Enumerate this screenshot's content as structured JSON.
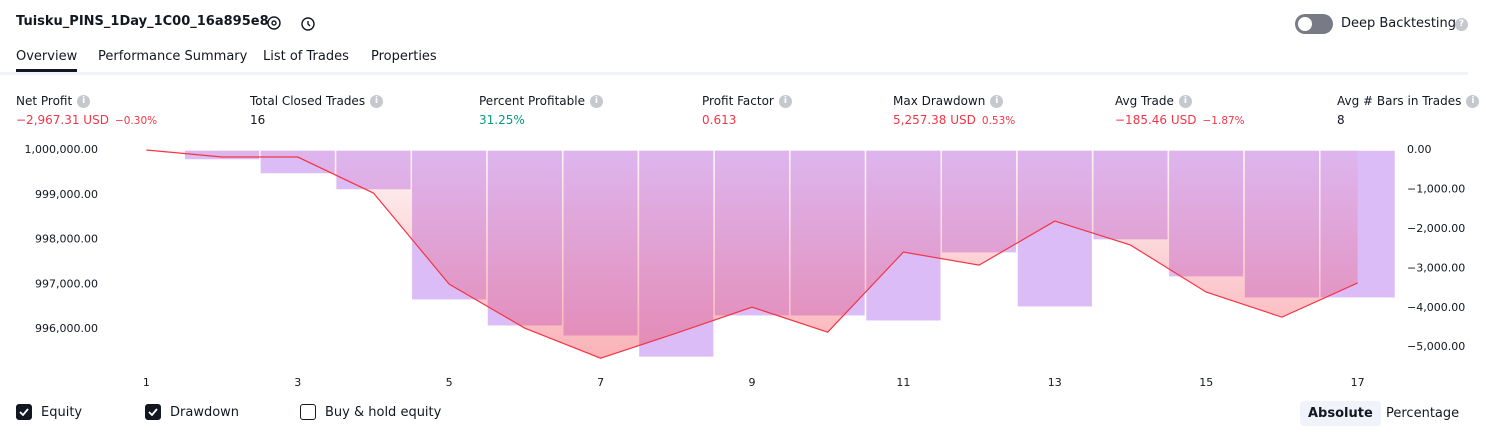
{
  "header": {
    "title": "Tuisku_PINS_1Day_1C00_16a895e8",
    "toggle": "Deep Backtesting"
  },
  "tabs": [
    "Overview",
    "Performance Summary",
    "List of Trades",
    "Properties"
  ],
  "metrics": [
    {
      "label": "Net Profit",
      "value": "−2,967.31 USD",
      "change": "−0.30%",
      "color": "#f23645"
    },
    {
      "label": "Total Closed Trades",
      "value": "16",
      "color": "#131722"
    },
    {
      "label": "Percent Profitable",
      "value": "31.25%",
      "color": "#089981"
    },
    {
      "label": "Profit Factor",
      "value": "0.613",
      "color": "#f23645"
    },
    {
      "label": "Max Drawdown",
      "value": "5,257.38 USD",
      "change": "0.53%",
      "color": "#f23645"
    },
    {
      "label": "Avg Trade",
      "value": "−185.46 USD",
      "change": "−1.87%",
      "color": "#f23645"
    },
    {
      "label": "Avg # Bars in Trades",
      "value": "8",
      "color": "#131722"
    }
  ],
  "chart_data": {
    "type": "combo",
    "x": [
      1,
      2,
      3,
      4,
      5,
      6,
      7,
      8,
      9,
      10,
      11,
      12,
      13,
      14,
      15,
      16,
      17
    ],
    "series": [
      {
        "name": "Drawdown",
        "type": "bar",
        "axis": "y2",
        "color": "#dcbcf7",
        "values": [
          0,
          -254,
          -609,
          -1015,
          -3807,
          -4467,
          -4721,
          -5257,
          -4213,
          -4213,
          -4340,
          -2614,
          -3985,
          -2284,
          -3223,
          -3756,
          -3756
        ]
      },
      {
        "name": "Equity",
        "type": "line",
        "color": "#f23645",
        "values": [
          1000000,
          999843,
          999843,
          999039,
          997006,
          996022,
          995352,
          995911,
          996492,
          995933,
          997721,
          997430,
          998413,
          997877,
          996827,
          996268,
          997033
        ]
      }
    ],
    "xlim": [
      0.52,
      17.52
    ],
    "xticks": [
      1,
      3,
      5,
      7,
      9,
      11,
      13,
      15,
      17
    ],
    "ylim": [
      995200,
      1000000
    ],
    "yticks": [
      {
        "value": 1000000,
        "label": "1,000,000.00"
      },
      {
        "value": 999000,
        "label": "999,000.00"
      },
      {
        "value": 998000,
        "label": "998,000.00"
      },
      {
        "value": 997000,
        "label": "997,000.00"
      },
      {
        "value": 996000,
        "label": "996,000.00"
      }
    ],
    "y2lim": [
      -5450,
      0
    ],
    "y2ticks": [
      {
        "value": 0,
        "label": "0.00"
      },
      {
        "value": -1000,
        "label": "−1,000.00"
      },
      {
        "value": -2000,
        "label": "−2,000.00"
      },
      {
        "value": -3000,
        "label": "−3,000.00"
      },
      {
        "value": -4000,
        "label": "−4,000.00"
      },
      {
        "value": -5000,
        "label": "−5,000.00"
      }
    ]
  },
  "legend_toggles": [
    {
      "label": "Equity",
      "checked": true
    },
    {
      "label": "Drawdown",
      "checked": true
    },
    {
      "label": "Buy & hold equity",
      "checked": false
    }
  ],
  "scale_buttons": [
    "Absolute",
    "Percentage"
  ]
}
